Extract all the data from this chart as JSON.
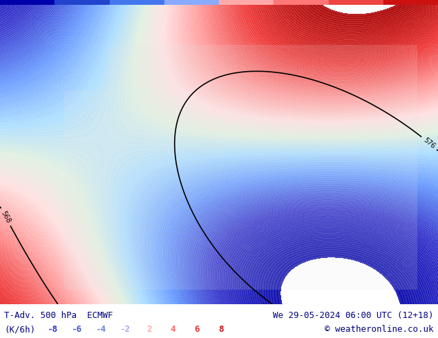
{
  "title_left": "T-Adv. 500 hPa  ECMWF",
  "title_right": "We 29-05-2024 06:00 UTC (12+18)",
  "units": "(K/6h)",
  "copyright": "© weatheronline.co.uk",
  "legend_values": [
    -8,
    -6,
    -4,
    -2,
    2,
    4,
    6,
    8
  ],
  "legend_colors_negative": [
    "#3333cc",
    "#5555dd",
    "#7777ee",
    "#aaaaff"
  ],
  "legend_colors_positive": [
    "#ffaaaa",
    "#ff6666",
    "#ee3333",
    "#cc1111"
  ],
  "bg_color": "#ffffff",
  "map_bg": "#d0e8f0",
  "contour_color": "#000000",
  "label_fontsize": 9,
  "title_fontsize": 9,
  "fig_width": 6.34,
  "fig_height": 4.9,
  "dpi": 100
}
